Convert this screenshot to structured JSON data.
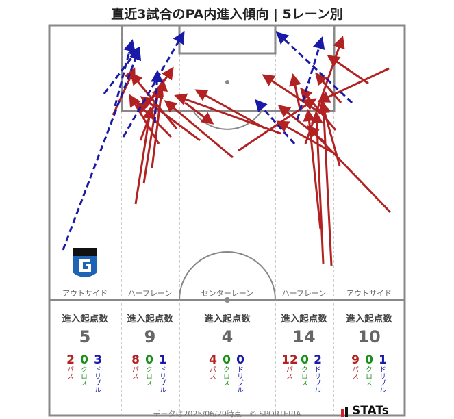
{
  "title": "直近3試合のPA内進入傾向 | 5レーン別",
  "colors": {
    "pass": "#b22222",
    "cross": "#1a8f1a",
    "dribble": "#1a1aa8",
    "pitch_line": "#888888"
  },
  "chart_data": {
    "type": "pitch-arrows",
    "lanes": [
      {
        "name": "アウトサイド",
        "stat_header": "進入起点数",
        "total": "5",
        "pass": "2",
        "cross": "0",
        "dribble": "3"
      },
      {
        "name": "ハーフレーン",
        "stat_header": "進入起点数",
        "total": "9",
        "pass": "8",
        "cross": "0",
        "dribble": "1"
      },
      {
        "name": "センターレーン",
        "stat_header": "進入起点数",
        "total": "4",
        "pass": "4",
        "cross": "0",
        "dribble": "0"
      },
      {
        "name": "ハーフレーン",
        "stat_header": "進入起点数",
        "total": "14",
        "pass": "12",
        "cross": "0",
        "dribble": "2"
      },
      {
        "name": "アウトサイド",
        "stat_header": "進入起点数",
        "total": "10",
        "pass": "9",
        "cross": "0",
        "dribble": "1"
      }
    ],
    "stat_labels": {
      "pass": "パス",
      "cross": "クロス",
      "dribble": "ドリブル"
    },
    "arrows": [
      {
        "type": "dribble",
        "from": [
          92,
          365
        ],
        "to": [
          203,
          72
        ]
      },
      {
        "type": "dribble",
        "from": [
          152,
          137
        ],
        "to": [
          203,
          70
        ]
      },
      {
        "type": "dribble",
        "from": [
          180,
          200
        ],
        "to": [
          268,
          48
        ]
      },
      {
        "type": "dribble",
        "from": [
          168,
          155
        ],
        "to": [
          193,
          60
        ]
      },
      {
        "type": "dribble",
        "from": [
          226,
          180
        ],
        "to": [
          230,
          105
        ]
      },
      {
        "type": "dribble",
        "from": [
          434,
          175
        ],
        "to": [
          470,
          56
        ]
      },
      {
        "type": "dribble",
        "from": [
          514,
          150
        ],
        "to": [
          405,
          48
        ]
      },
      {
        "type": "dribble",
        "from": [
          430,
          210
        ],
        "to": [
          374,
          147
        ]
      },
      {
        "type": "pass",
        "from": [
          165,
          168
        ],
        "to": [
          196,
          101
        ]
      },
      {
        "type": "pass",
        "from": [
          198,
          298
        ],
        "to": [
          220,
          158
        ]
      },
      {
        "type": "pass",
        "from": [
          210,
          268
        ],
        "to": [
          232,
          128
        ]
      },
      {
        "type": "pass",
        "from": [
          222,
          245
        ],
        "to": [
          238,
          118
        ]
      },
      {
        "type": "pass",
        "from": [
          205,
          205
        ],
        "to": [
          236,
          125
        ]
      },
      {
        "type": "pass",
        "from": [
          232,
          210
        ],
        "to": [
          190,
          140
        ]
      },
      {
        "type": "pass",
        "from": [
          250,
          200
        ],
        "to": [
          200,
          150
        ]
      },
      {
        "type": "pass",
        "from": [
          258,
          188
        ],
        "to": [
          192,
          108
        ]
      },
      {
        "type": "pass",
        "from": [
          218,
          150
        ],
        "to": [
          252,
          100
        ]
      },
      {
        "type": "pass",
        "from": [
          292,
          205
        ],
        "to": [
          207,
          142
        ]
      },
      {
        "type": "pass",
        "from": [
          340,
          230
        ],
        "to": [
          242,
          148
        ]
      },
      {
        "type": "pass",
        "from": [
          410,
          195
        ],
        "to": [
          257,
          140
        ]
      },
      {
        "type": "pass",
        "from": [
          388,
          188
        ],
        "to": [
          287,
          132
        ]
      },
      {
        "type": "pass",
        "from": [
          270,
          150
        ],
        "to": [
          310,
          180
        ]
      },
      {
        "type": "pass",
        "from": [
          472,
          385
        ],
        "to": [
          462,
          165
        ]
      },
      {
        "type": "pass",
        "from": [
          484,
          388
        ],
        "to": [
          472,
          150
        ]
      },
      {
        "type": "pass",
        "from": [
          468,
          335
        ],
        "to": [
          450,
          162
        ]
      },
      {
        "type": "pass",
        "from": [
          570,
          310
        ],
        "to": [
          450,
          185
        ]
      },
      {
        "type": "pass",
        "from": [
          490,
          225
        ],
        "to": [
          406,
          178
        ]
      },
      {
        "type": "pass",
        "from": [
          475,
          208
        ],
        "to": [
          408,
          155
        ]
      },
      {
        "type": "pass",
        "from": [
          468,
          165
        ],
        "to": [
          385,
          110
        ]
      },
      {
        "type": "pass",
        "from": [
          496,
          242
        ],
        "to": [
          470,
          150
        ]
      },
      {
        "type": "pass",
        "from": [
          438,
          160
        ],
        "to": [
          428,
          110
        ]
      },
      {
        "type": "pass",
        "from": [
          498,
          150
        ],
        "to": [
          462,
          108
        ]
      },
      {
        "type": "pass",
        "from": [
          348,
          220
        ],
        "to": [
          460,
          145
        ]
      },
      {
        "type": "pass",
        "from": [
          568,
          100
        ],
        "to": [
          466,
          148
        ]
      },
      {
        "type": "pass",
        "from": [
          538,
          122
        ],
        "to": [
          480,
          82
        ]
      },
      {
        "type": "pass",
        "from": [
          490,
          190
        ],
        "to": [
          440,
          130
        ]
      },
      {
        "type": "pass",
        "from": [
          446,
          210
        ],
        "to": [
          500,
          55
        ]
      }
    ]
  },
  "footer": "データは2025/06/29時点　© SPORTERIA",
  "brand": "STATs"
}
